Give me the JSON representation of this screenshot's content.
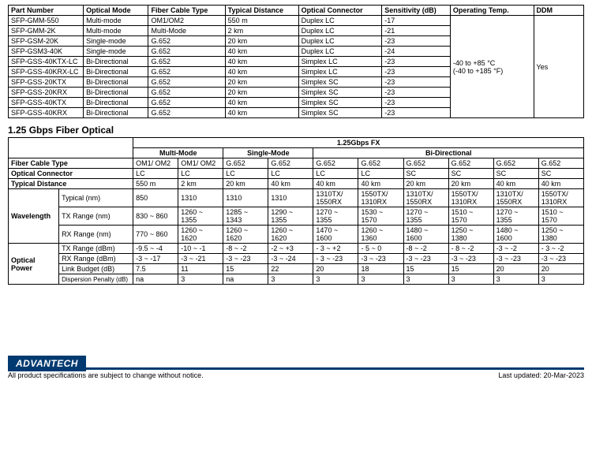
{
  "colors": {
    "border": "#000000",
    "text": "#000000",
    "brand_bg": "#003a70",
    "brand_text": "#ffffff",
    "page_bg": "#ffffff"
  },
  "table1": {
    "headers": [
      "Part Number",
      "Optical Mode",
      "Fiber Cable Type",
      "Typical Distance",
      "Optical Connector",
      "Sensitivity (dB)",
      "Operating Temp.",
      "DDM"
    ],
    "rows": [
      {
        "pn": "SFP-GMM-550",
        "mode": "Multi-mode",
        "cable": "OM1/OM2",
        "dist": "550 m",
        "conn": "Duplex LC",
        "sens": "-17"
      },
      {
        "pn": "SFP-GMM-2K",
        "mode": "Multi-mode",
        "cable": "Multi-Mode",
        "dist": "2 km",
        "conn": "Duplex LC",
        "sens": "-21"
      },
      {
        "pn": "SFP-GSM-20K",
        "mode": "Single-mode",
        "cable": "G.652",
        "dist": "20 km",
        "conn": "Duplex LC",
        "sens": "-23"
      },
      {
        "pn": "SFP-GSM3-40K",
        "mode": "Single-mode",
        "cable": "G.652",
        "dist": "40 km",
        "conn": "Duplex LC",
        "sens": "-24"
      },
      {
        "pn": "SFP-GSS-40KTX-LC",
        "mode": "Bi-Directional",
        "cable": "G.652",
        "dist": "40 km",
        "conn": "Simplex LC",
        "sens": "-23"
      },
      {
        "pn": "SFP-GSS-40KRX-LC",
        "mode": "Bi-Directional",
        "cable": "G.652",
        "dist": "40 km",
        "conn": "Simplex LC",
        "sens": "-23"
      },
      {
        "pn": "SFP-GSS-20KTX",
        "mode": "Bi-Directional",
        "cable": "G.652",
        "dist": "20 km",
        "conn": "Simplex SC",
        "sens": "-23"
      },
      {
        "pn": "SFP-GSS-20KRX",
        "mode": "Bi-Directional",
        "cable": "G.652",
        "dist": "20 km",
        "conn": "Simplex SC",
        "sens": "-23"
      },
      {
        "pn": "SFP-GSS-40KTX",
        "mode": "Bi-Directional",
        "cable": "G.652",
        "dist": "40 km",
        "conn": "Simplex SC",
        "sens": "-23"
      },
      {
        "pn": "SFP-GSS-40KRX",
        "mode": "Bi-Directional",
        "cable": "G.652",
        "dist": "40 km",
        "conn": "Simplex SC",
        "sens": "-23"
      }
    ],
    "temp_line1": "-40 to +85 °C",
    "temp_line2": "(-40 to +185 °F)",
    "ddm": "Yes"
  },
  "section2_title": "1.25 Gbps Fiber Optical",
  "table2": {
    "top_header": "1.25Gbps FX",
    "group_headers": [
      "Multi-Mode",
      "Single-Mode",
      "Bi-Directional"
    ],
    "row_labels": {
      "fiber": "Fiber Cable Type",
      "conn": "Optical Connector",
      "dist": "Typical Distance",
      "wavelength": "Wavelength",
      "typical": "Typical (nm)",
      "txr": "TX Range (nm)",
      "rxr": "RX Range (nm)",
      "optpower": "Optical Power",
      "txd": "TX Range (dBm)",
      "rxd": "RX Range (dBm)",
      "link": "Link Budget (dB)",
      "disp": "Dispersion Penalty (dB)"
    },
    "cols": [
      {
        "fiber": "OM1/ OM2",
        "conn": "LC",
        "dist": "550 m",
        "typical": "850",
        "txr": "830 ~ 860",
        "rxr": "770 ~ 860",
        "txd": "-9.5 ~ -4",
        "rxd": "-3 ~ -17",
        "link": "7.5",
        "disp": "na"
      },
      {
        "fiber": "OM1/ OM2",
        "conn": "LC",
        "dist": "2 km",
        "typical": "1310",
        "txr": "1260 ~ 1355",
        "rxr": "1260 ~ 1620",
        "txd": "-10 ~ -1",
        "rxd": "-3 ~ -21",
        "link": "11",
        "disp": "3"
      },
      {
        "fiber": "G.652",
        "conn": "LC",
        "dist": "20 km",
        "typical": "1310",
        "txr": "1285 ~ 1343",
        "rxr": "1260 ~ 1620",
        "txd": "-8 ~ -2",
        "rxd": "-3 ~ -23",
        "link": "15",
        "disp": "na"
      },
      {
        "fiber": "G.652",
        "conn": "LC",
        "dist": "40 km",
        "typical": "1310",
        "txr": "1290 ~ 1355",
        "rxr": "1260 ~ 1620",
        "txd": "-2 ~ +3",
        "rxd": "-3 ~ -24",
        "link": "22",
        "disp": "3"
      },
      {
        "fiber": "G.652",
        "conn": "LC",
        "dist": "40 km",
        "typical": "1310TX/ 1550RX",
        "txr": "1270 ~ 1355",
        "rxr": "1470 ~ 1600",
        "txd": "- 3 ~ +2",
        "rxd": "- 3 ~ -23",
        "link": "20",
        "disp": "3"
      },
      {
        "fiber": "G.652",
        "conn": "LC",
        "dist": "40 km",
        "typical": "1550TX/ 1310RX",
        "txr": "1530 ~ 1570",
        "rxr": "1260 ~ 1360",
        "txd": "- 5 ~ 0",
        "rxd": "-3 ~ -23",
        "link": "18",
        "disp": "3"
      },
      {
        "fiber": "G.652",
        "conn": "SC",
        "dist": "20 km",
        "typical": "1310TX/ 1550RX",
        "txr": "1270 ~ 1355",
        "rxr": "1480 ~ 1600",
        "txd": "-8 ~ -2",
        "rxd": "-3 ~ -23",
        "link": "15",
        "disp": "3"
      },
      {
        "fiber": "G.652",
        "conn": "SC",
        "dist": "20 km",
        "typical": "1550TX/ 1310RX",
        "txr": "1510 ~ 1570",
        "rxr": "1250 ~ 1380",
        "txd": "- 8 ~ -2",
        "rxd": "-3 ~ -23",
        "link": "15",
        "disp": "3"
      },
      {
        "fiber": "G.652",
        "conn": "SC",
        "dist": "40 km",
        "typical": "1310TX/ 1550RX",
        "txr": "1270 ~ 1355",
        "rxr": "1480 ~ 1600",
        "txd": "-3 ~ -2",
        "rxd": "-3 ~ -23",
        "link": "20",
        "disp": "3"
      },
      {
        "fiber": "G.652",
        "conn": "SC",
        "dist": "40 km",
        "typical": "1550TX/ 1310RX",
        "txr": "1510 ~ 1570",
        "rxr": "1250 ~ 1380",
        "txd": "- 3 ~ -2",
        "rxd": "-3 ~ -23",
        "link": "20",
        "disp": "3"
      }
    ]
  },
  "footer": {
    "brand": "ADVANTECH",
    "disclaimer": "All product specifications are subject to change without notice.",
    "updated": "Last updated: 20-Mar-2023"
  }
}
